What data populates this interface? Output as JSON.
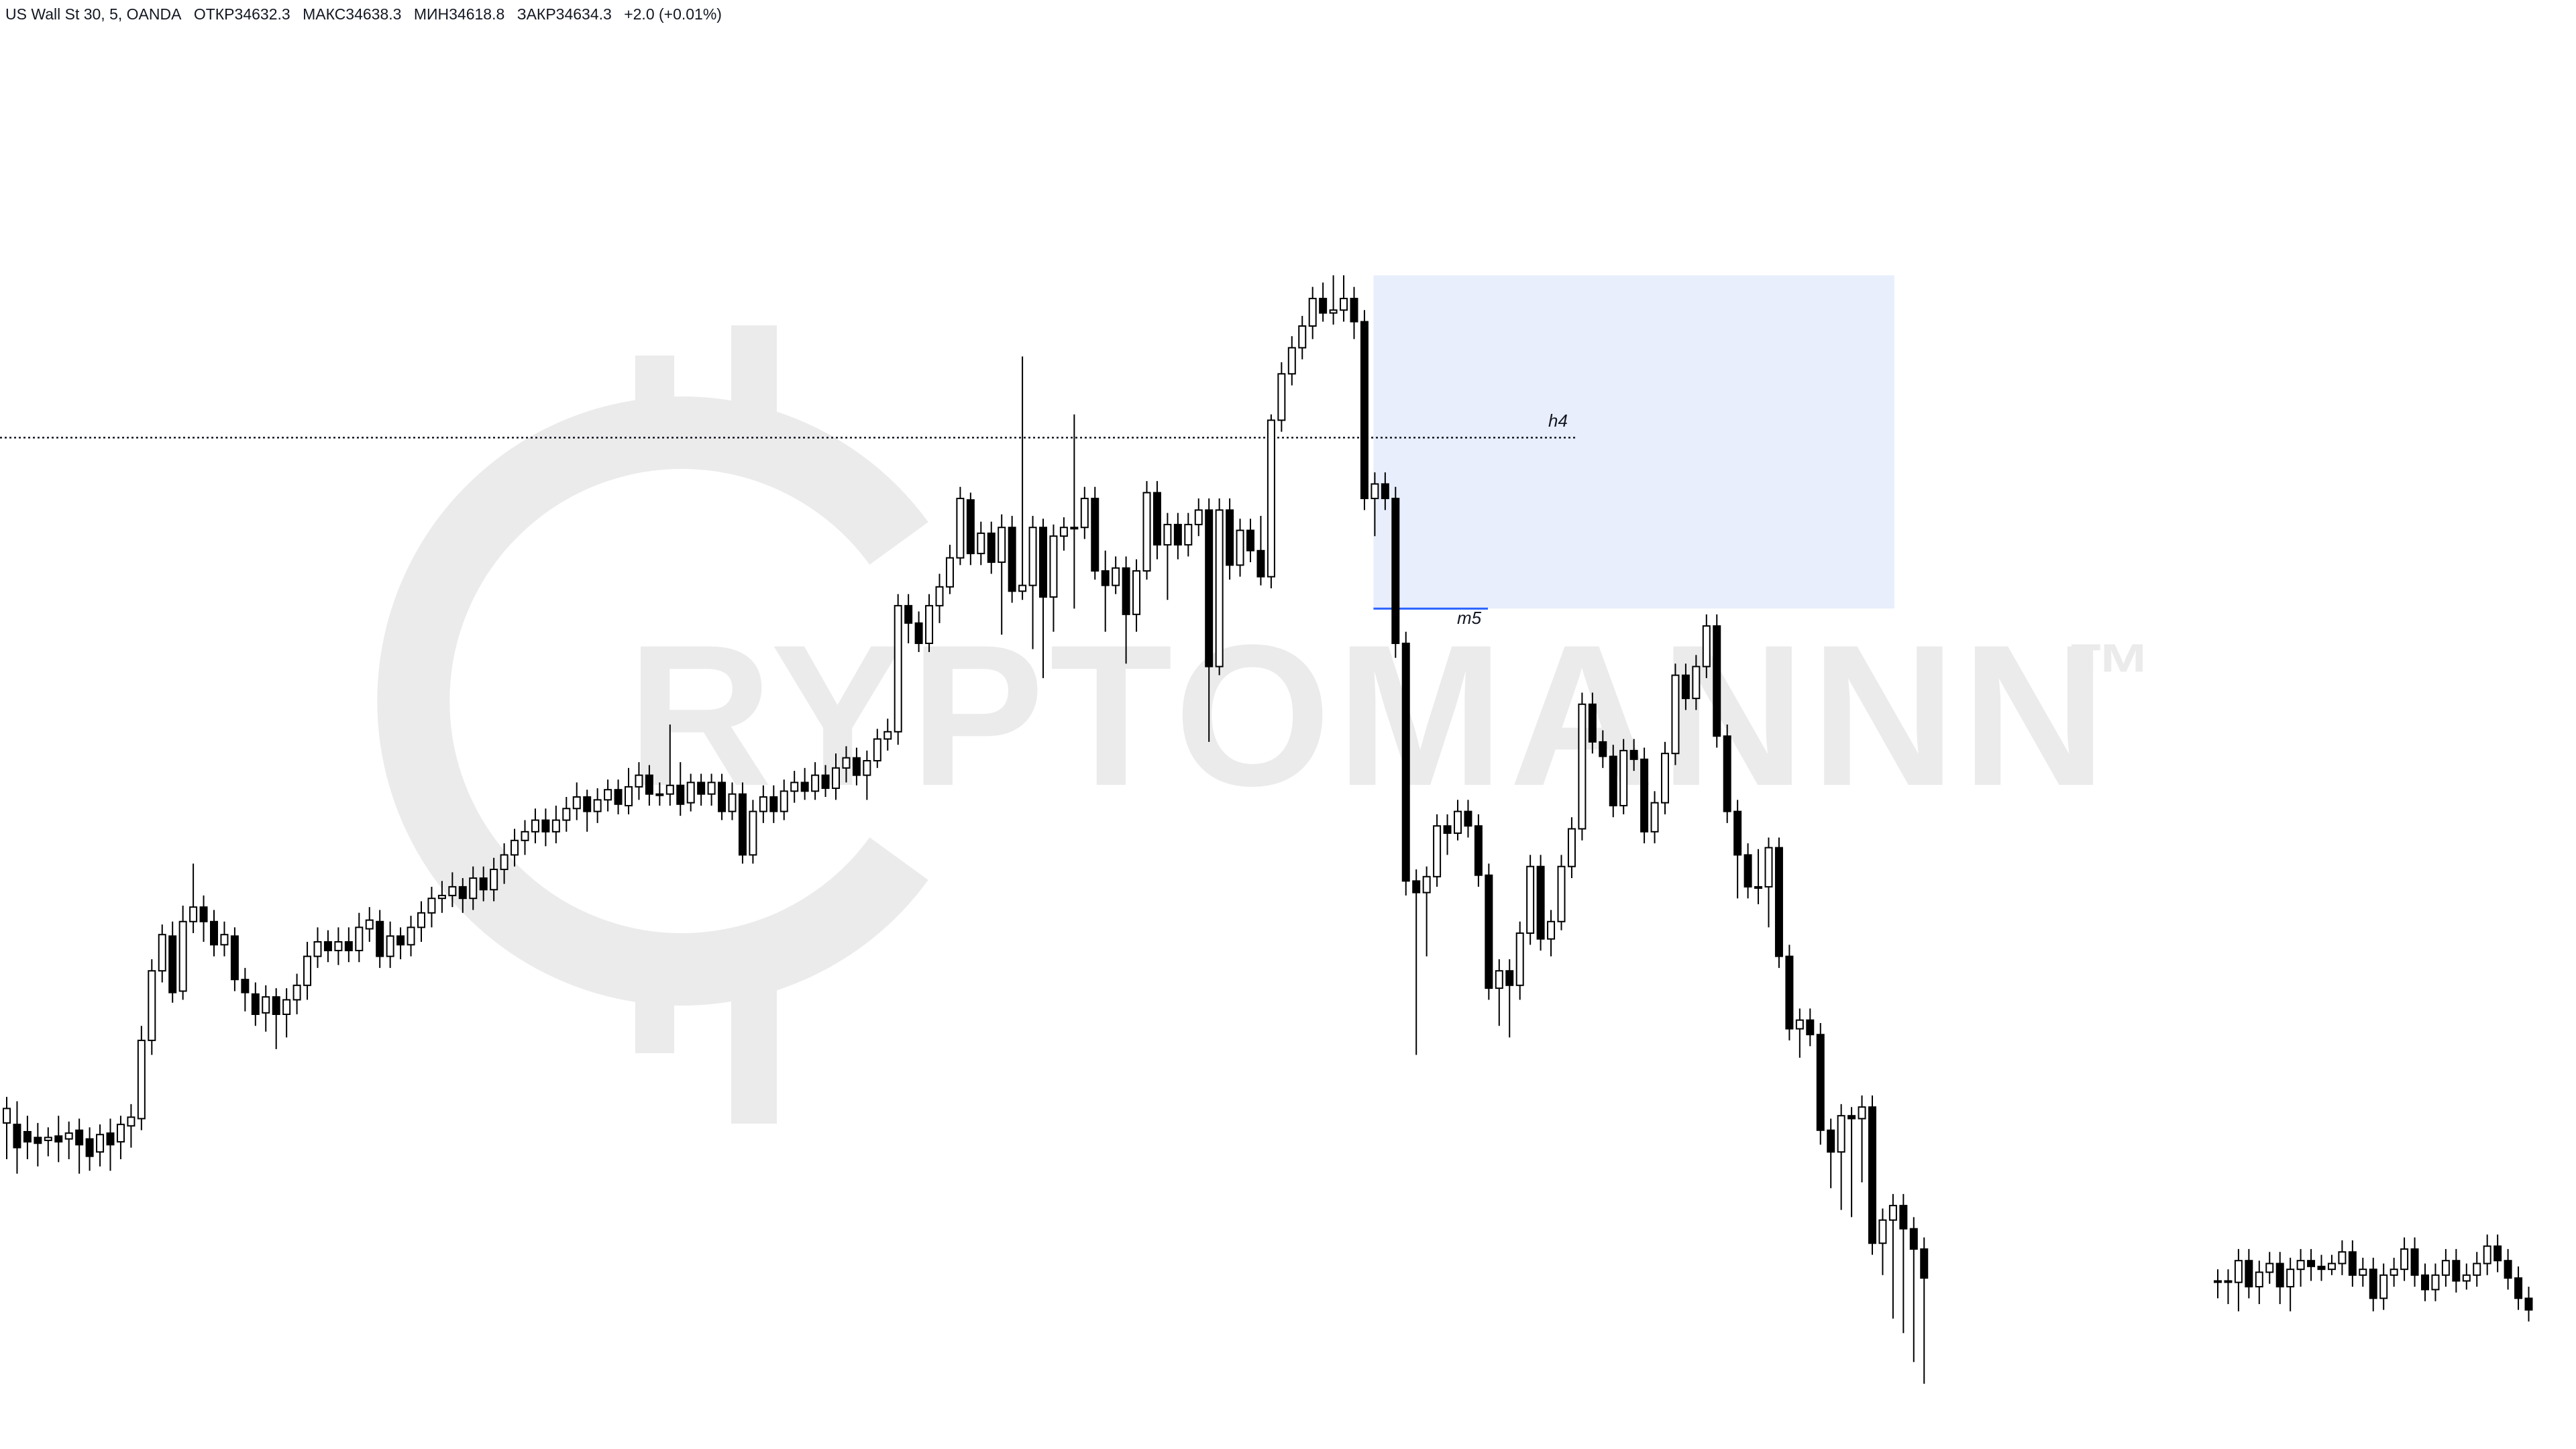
{
  "header": {
    "symbol": "US Wall St 30, 5, OANDA",
    "open": "ОТКР34632.3",
    "high": "МАКС34638.3",
    "low": "МИН34618.8",
    "close": "ЗАКР34634.3",
    "change": "+2.0 (+0.01%)"
  },
  "watermark": {
    "text": "RYPTOMANNN",
    "trademark": "™",
    "icon": "bitcoin-c-logo-icon"
  },
  "colors": {
    "background": "#ffffff",
    "candle_up_fill": "#ffffff",
    "candle_down_fill": "#000000",
    "candle_outline": "#000000",
    "zone_fill": "#e8eefc",
    "m5_line": "#2962ff",
    "watermark": "#ebebeb"
  },
  "annotations": {
    "h4_label": "h4",
    "m5_label": "m5"
  },
  "chart_data": {
    "type": "candlestick",
    "y_axis": {
      "min": 2000,
      "max": 0,
      "note": "no price axis shown"
    },
    "h4_level_index": 0.302,
    "m5_level_index": 0.42,
    "zone": {
      "from_candle": 132,
      "to_candle": 182,
      "top": 0.19,
      "bottom": 0.42
    },
    "gap_after_candle": 204,
    "candles": [
      [
        0.775,
        0.765,
        0.757,
        0.8
      ],
      [
        0.776,
        0.792,
        0.76,
        0.81
      ],
      [
        0.781,
        0.788,
        0.77,
        0.8
      ],
      [
        0.785,
        0.789,
        0.775,
        0.805
      ],
      [
        0.787,
        0.785,
        0.778,
        0.798
      ],
      [
        0.784,
        0.788,
        0.77,
        0.802
      ],
      [
        0.786,
        0.782,
        0.774,
        0.8
      ],
      [
        0.78,
        0.79,
        0.772,
        0.81
      ],
      [
        0.786,
        0.798,
        0.778,
        0.808
      ],
      [
        0.795,
        0.783,
        0.776,
        0.805
      ],
      [
        0.782,
        0.79,
        0.772,
        0.808
      ],
      [
        0.788,
        0.776,
        0.77,
        0.8
      ],
      [
        0.777,
        0.771,
        0.762,
        0.792
      ],
      [
        0.772,
        0.718,
        0.708,
        0.78
      ],
      [
        0.718,
        0.67,
        0.662,
        0.728
      ],
      [
        0.67,
        0.645,
        0.638,
        0.678
      ],
      [
        0.646,
        0.685,
        0.636,
        0.692
      ],
      [
        0.684,
        0.636,
        0.625,
        0.69
      ],
      [
        0.636,
        0.626,
        0.596,
        0.644
      ],
      [
        0.626,
        0.636,
        0.618,
        0.65
      ],
      [
        0.636,
        0.652,
        0.628,
        0.66
      ],
      [
        0.652,
        0.645,
        0.636,
        0.66
      ],
      [
        0.646,
        0.676,
        0.64,
        0.684
      ],
      [
        0.676,
        0.685,
        0.668,
        0.698
      ],
      [
        0.686,
        0.7,
        0.678,
        0.708
      ],
      [
        0.699,
        0.688,
        0.68,
        0.712
      ],
      [
        0.688,
        0.7,
        0.682,
        0.724
      ],
      [
        0.7,
        0.69,
        0.682,
        0.716
      ],
      [
        0.69,
        0.68,
        0.672,
        0.7
      ],
      [
        0.68,
        0.66,
        0.65,
        0.69
      ],
      [
        0.66,
        0.65,
        0.64,
        0.668
      ],
      [
        0.65,
        0.656,
        0.642,
        0.664
      ],
      [
        0.656,
        0.65,
        0.64,
        0.666
      ],
      [
        0.65,
        0.656,
        0.64,
        0.664
      ],
      [
        0.656,
        0.64,
        0.63,
        0.664
      ],
      [
        0.641,
        0.635,
        0.626,
        0.65
      ],
      [
        0.636,
        0.66,
        0.628,
        0.668
      ],
      [
        0.66,
        0.646,
        0.636,
        0.668
      ],
      [
        0.646,
        0.652,
        0.64,
        0.662
      ],
      [
        0.652,
        0.64,
        0.632,
        0.66
      ],
      [
        0.64,
        0.63,
        0.622,
        0.65
      ],
      [
        0.63,
        0.62,
        0.612,
        0.64
      ],
      [
        0.62,
        0.618,
        0.608,
        0.63
      ],
      [
        0.618,
        0.612,
        0.602,
        0.626
      ],
      [
        0.612,
        0.62,
        0.606,
        0.63
      ],
      [
        0.62,
        0.606,
        0.598,
        0.628
      ],
      [
        0.606,
        0.614,
        0.598,
        0.622
      ],
      [
        0.614,
        0.6,
        0.592,
        0.622
      ],
      [
        0.6,
        0.59,
        0.582,
        0.61
      ],
      [
        0.59,
        0.58,
        0.572,
        0.598
      ],
      [
        0.58,
        0.574,
        0.566,
        0.59
      ],
      [
        0.574,
        0.566,
        0.558,
        0.582
      ],
      [
        0.566,
        0.574,
        0.558,
        0.584
      ],
      [
        0.574,
        0.566,
        0.556,
        0.582
      ],
      [
        0.566,
        0.558,
        0.55,
        0.574
      ],
      [
        0.558,
        0.55,
        0.54,
        0.566
      ],
      [
        0.55,
        0.56,
        0.545,
        0.574
      ],
      [
        0.56,
        0.552,
        0.544,
        0.568
      ],
      [
        0.552,
        0.545,
        0.538,
        0.56
      ],
      [
        0.545,
        0.555,
        0.538,
        0.562
      ],
      [
        0.556,
        0.543,
        0.53,
        0.562
      ],
      [
        0.543,
        0.535,
        0.526,
        0.552
      ],
      [
        0.535,
        0.548,
        0.528,
        0.556
      ],
      [
        0.548,
        0.548,
        0.54,
        0.556
      ],
      [
        0.548,
        0.542,
        0.5,
        0.556
      ],
      [
        0.542,
        0.555,
        0.526,
        0.563
      ],
      [
        0.554,
        0.54,
        0.534,
        0.56
      ],
      [
        0.54,
        0.548,
        0.534,
        0.556
      ],
      [
        0.548,
        0.54,
        0.534,
        0.556
      ],
      [
        0.54,
        0.56,
        0.534,
        0.566
      ],
      [
        0.56,
        0.548,
        0.54,
        0.566
      ],
      [
        0.548,
        0.59,
        0.54,
        0.596
      ],
      [
        0.59,
        0.56,
        0.552,
        0.596
      ],
      [
        0.56,
        0.55,
        0.542,
        0.568
      ],
      [
        0.55,
        0.56,
        0.542,
        0.568
      ],
      [
        0.56,
        0.546,
        0.538,
        0.566
      ],
      [
        0.546,
        0.54,
        0.532,
        0.554
      ],
      [
        0.54,
        0.546,
        0.53,
        0.552
      ],
      [
        0.546,
        0.535,
        0.526,
        0.552
      ],
      [
        0.535,
        0.544,
        0.528,
        0.55
      ],
      [
        0.544,
        0.53,
        0.52,
        0.552
      ],
      [
        0.53,
        0.523,
        0.515,
        0.54
      ],
      [
        0.523,
        0.535,
        0.516,
        0.542
      ],
      [
        0.535,
        0.525,
        0.518,
        0.552
      ],
      [
        0.525,
        0.51,
        0.503,
        0.53
      ],
      [
        0.51,
        0.505,
        0.496,
        0.518
      ],
      [
        0.505,
        0.418,
        0.41,
        0.514
      ],
      [
        0.418,
        0.43,
        0.41,
        0.444
      ],
      [
        0.43,
        0.444,
        0.422,
        0.45
      ],
      [
        0.444,
        0.418,
        0.41,
        0.45
      ],
      [
        0.418,
        0.405,
        0.396,
        0.43
      ],
      [
        0.405,
        0.385,
        0.376,
        0.41
      ],
      [
        0.385,
        0.344,
        0.336,
        0.39
      ],
      [
        0.345,
        0.382,
        0.34,
        0.39
      ],
      [
        0.382,
        0.368,
        0.36,
        0.39
      ],
      [
        0.368,
        0.388,
        0.36,
        0.396
      ],
      [
        0.388,
        0.364,
        0.355,
        0.438
      ],
      [
        0.364,
        0.408,
        0.356,
        0.416
      ],
      [
        0.408,
        0.404,
        0.246,
        0.414
      ],
      [
        0.404,
        0.364,
        0.356,
        0.448
      ],
      [
        0.364,
        0.412,
        0.358,
        0.468
      ],
      [
        0.412,
        0.37,
        0.362,
        0.436
      ],
      [
        0.37,
        0.364,
        0.357,
        0.38
      ],
      [
        0.364,
        0.364,
        0.286,
        0.42
      ],
      [
        0.364,
        0.344,
        0.336,
        0.372
      ],
      [
        0.344,
        0.394,
        0.336,
        0.4
      ],
      [
        0.394,
        0.404,
        0.38,
        0.436
      ],
      [
        0.404,
        0.392,
        0.384,
        0.41
      ],
      [
        0.392,
        0.424,
        0.384,
        0.458
      ],
      [
        0.424,
        0.394,
        0.386,
        0.436
      ],
      [
        0.394,
        0.34,
        0.332,
        0.4
      ],
      [
        0.34,
        0.376,
        0.332,
        0.386
      ],
      [
        0.376,
        0.362,
        0.354,
        0.414
      ],
      [
        0.362,
        0.376,
        0.354,
        0.386
      ],
      [
        0.376,
        0.362,
        0.354,
        0.384
      ],
      [
        0.362,
        0.352,
        0.344,
        0.37
      ],
      [
        0.352,
        0.46,
        0.344,
        0.512
      ],
      [
        0.46,
        0.352,
        0.344,
        0.466
      ],
      [
        0.352,
        0.39,
        0.344,
        0.4
      ],
      [
        0.39,
        0.366,
        0.358,
        0.398
      ],
      [
        0.366,
        0.38,
        0.358,
        0.388
      ],
      [
        0.38,
        0.398,
        0.356,
        0.404
      ],
      [
        0.398,
        0.29,
        0.286,
        0.406
      ],
      [
        0.29,
        0.258,
        0.25,
        0.298
      ],
      [
        0.258,
        0.24,
        0.232,
        0.266
      ],
      [
        0.24,
        0.225,
        0.218,
        0.248
      ],
      [
        0.225,
        0.206,
        0.198,
        0.234
      ],
      [
        0.206,
        0.216,
        0.195,
        0.222
      ],
      [
        0.216,
        0.214,
        0.19,
        0.224
      ],
      [
        0.214,
        0.206,
        0.19,
        0.222
      ],
      [
        0.206,
        0.222,
        0.198,
        0.234
      ],
      [
        0.222,
        0.344,
        0.214,
        0.352
      ],
      [
        0.344,
        0.334,
        0.326,
        0.37
      ],
      [
        0.334,
        0.344,
        0.326,
        0.352
      ],
      [
        0.344,
        0.444,
        0.336,
        0.454
      ],
      [
        0.444,
        0.608,
        0.436,
        0.618
      ],
      [
        0.608,
        0.616,
        0.6,
        0.728
      ],
      [
        0.616,
        0.605,
        0.598,
        0.66
      ],
      [
        0.605,
        0.57,
        0.562,
        0.612
      ],
      [
        0.57,
        0.575,
        0.562,
        0.59
      ],
      [
        0.575,
        0.56,
        0.552,
        0.58
      ],
      [
        0.56,
        0.57,
        0.552,
        0.578
      ],
      [
        0.57,
        0.604,
        0.562,
        0.612
      ],
      [
        0.604,
        0.682,
        0.596,
        0.69
      ],
      [
        0.682,
        0.67,
        0.662,
        0.708
      ],
      [
        0.67,
        0.68,
        0.662,
        0.716
      ],
      [
        0.68,
        0.644,
        0.636,
        0.69
      ],
      [
        0.644,
        0.598,
        0.59,
        0.652
      ],
      [
        0.598,
        0.648,
        0.59,
        0.656
      ],
      [
        0.648,
        0.636,
        0.628,
        0.66
      ],
      [
        0.636,
        0.598,
        0.59,
        0.642
      ],
      [
        0.598,
        0.572,
        0.564,
        0.606
      ],
      [
        0.572,
        0.486,
        0.478,
        0.58
      ],
      [
        0.486,
        0.512,
        0.478,
        0.52
      ],
      [
        0.512,
        0.522,
        0.504,
        0.53
      ],
      [
        0.522,
        0.556,
        0.514,
        0.564
      ],
      [
        0.556,
        0.518,
        0.51,
        0.562
      ],
      [
        0.518,
        0.524,
        0.51,
        0.532
      ],
      [
        0.524,
        0.574,
        0.516,
        0.582
      ],
      [
        0.574,
        0.554,
        0.546,
        0.582
      ],
      [
        0.554,
        0.52,
        0.512,
        0.562
      ],
      [
        0.52,
        0.466,
        0.458,
        0.528
      ],
      [
        0.466,
        0.482,
        0.458,
        0.49
      ],
      [
        0.482,
        0.46,
        0.452,
        0.49
      ],
      [
        0.46,
        0.432,
        0.424,
        0.468
      ],
      [
        0.432,
        0.508,
        0.424,
        0.516
      ],
      [
        0.508,
        0.56,
        0.5,
        0.568
      ],
      [
        0.56,
        0.59,
        0.552,
        0.62
      ],
      [
        0.59,
        0.612,
        0.582,
        0.62
      ],
      [
        0.612,
        0.612,
        0.586,
        0.624
      ],
      [
        0.612,
        0.585,
        0.578,
        0.64
      ],
      [
        0.585,
        0.66,
        0.578,
        0.668
      ],
      [
        0.66,
        0.71,
        0.652,
        0.718
      ],
      [
        0.71,
        0.704,
        0.696,
        0.73
      ],
      [
        0.704,
        0.714,
        0.696,
        0.722
      ],
      [
        0.714,
        0.78,
        0.706,
        0.79
      ],
      [
        0.78,
        0.795,
        0.772,
        0.82
      ],
      [
        0.795,
        0.77,
        0.762,
        0.835
      ],
      [
        0.77,
        0.772,
        0.764,
        0.84
      ],
      [
        0.772,
        0.764,
        0.756,
        0.816
      ],
      [
        0.764,
        0.858,
        0.756,
        0.866
      ],
      [
        0.858,
        0.842,
        0.834,
        0.88
      ],
      [
        0.842,
        0.832,
        0.824,
        0.91
      ],
      [
        0.832,
        0.848,
        0.824,
        0.92
      ],
      [
        0.848,
        0.862,
        0.84,
        0.94
      ],
      [
        0.862,
        0.882,
        0.854,
        0.955
      ]
    ],
    "tail_candles": [
      [
        0.884,
        0.884,
        0.876,
        0.896
      ],
      [
        0.884,
        0.884,
        0.876,
        0.9
      ],
      [
        0.885,
        0.87,
        0.862,
        0.905
      ],
      [
        0.87,
        0.888,
        0.862,
        0.896
      ],
      [
        0.888,
        0.878,
        0.87,
        0.9
      ],
      [
        0.878,
        0.872,
        0.864,
        0.886
      ],
      [
        0.872,
        0.888,
        0.864,
        0.9
      ],
      [
        0.888,
        0.876,
        0.868,
        0.905
      ],
      [
        0.876,
        0.87,
        0.862,
        0.888
      ],
      [
        0.87,
        0.874,
        0.862,
        0.884
      ],
      [
        0.874,
        0.876,
        0.866,
        0.884
      ],
      [
        0.876,
        0.872,
        0.866,
        0.88
      ],
      [
        0.872,
        0.864,
        0.856,
        0.88
      ],
      [
        0.864,
        0.88,
        0.856,
        0.888
      ],
      [
        0.88,
        0.876,
        0.868,
        0.888
      ],
      [
        0.876,
        0.896,
        0.868,
        0.905
      ],
      [
        0.896,
        0.88,
        0.872,
        0.904
      ],
      [
        0.88,
        0.876,
        0.868,
        0.888
      ],
      [
        0.876,
        0.862,
        0.854,
        0.884
      ],
      [
        0.862,
        0.88,
        0.854,
        0.888
      ],
      [
        0.88,
        0.89,
        0.872,
        0.898
      ],
      [
        0.89,
        0.88,
        0.872,
        0.898
      ],
      [
        0.88,
        0.87,
        0.862,
        0.888
      ],
      [
        0.87,
        0.884,
        0.862,
        0.892
      ],
      [
        0.884,
        0.88,
        0.872,
        0.89
      ],
      [
        0.88,
        0.872,
        0.864,
        0.888
      ],
      [
        0.872,
        0.86,
        0.852,
        0.88
      ],
      [
        0.86,
        0.87,
        0.852,
        0.878
      ],
      [
        0.87,
        0.882,
        0.862,
        0.89
      ],
      [
        0.882,
        0.896,
        0.874,
        0.904
      ],
      [
        0.896,
        0.904,
        0.888,
        0.912
      ]
    ]
  }
}
